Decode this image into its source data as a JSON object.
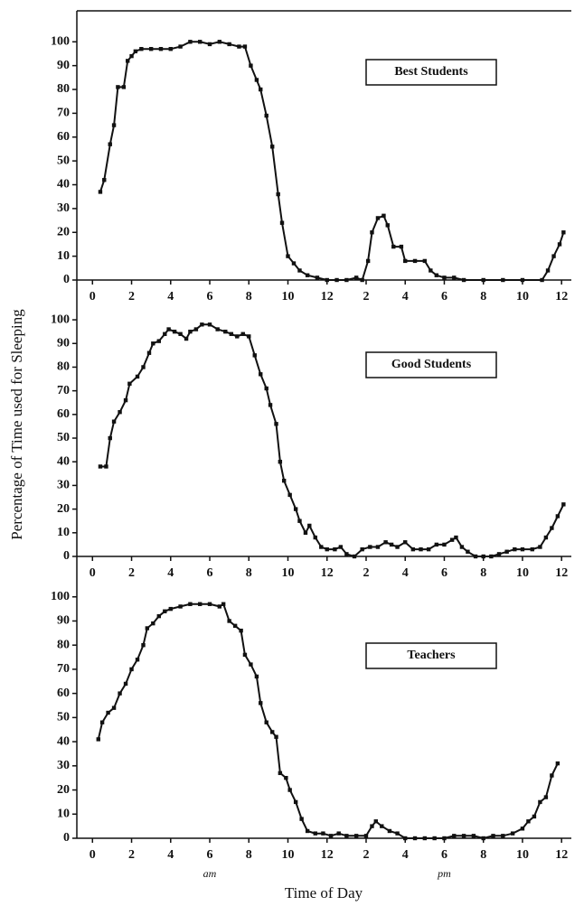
{
  "chart_data": [
    {
      "type": "line",
      "x": [
        0.4,
        0.6,
        0.9,
        1.1,
        1.3,
        1.6,
        1.8,
        2.0,
        2.2,
        2.5,
        3,
        3.5,
        4,
        4.5,
        5,
        5.5,
        6,
        6.5,
        7,
        7.5,
        7.8,
        8.1,
        8.4,
        8.6,
        8.9,
        9.2,
        9.5,
        9.7,
        10,
        10.3,
        10.6,
        11,
        11.5,
        12,
        12.5,
        13,
        13.5,
        13.8,
        14.1,
        14.3,
        14.6,
        14.9,
        15.1,
        15.4,
        15.8,
        16,
        16.5,
        17,
        17.3,
        17.6,
        18,
        18.5,
        19,
        20,
        21,
        22,
        23,
        23.3,
        23.6,
        23.9,
        24.1
      ],
      "series": [
        {
          "name": "Best Students",
          "color": "#111111",
          "values": [
            37,
            42,
            57,
            65,
            81,
            81,
            92,
            94,
            96,
            97,
            97,
            97,
            97,
            98,
            100,
            100,
            99,
            100,
            99,
            98,
            98,
            90,
            84,
            80,
            69,
            56,
            36,
            24,
            10,
            7,
            4,
            2,
            1,
            0,
            0,
            0,
            1,
            0,
            8,
            20,
            26,
            27,
            23,
            14,
            14,
            8,
            8,
            8,
            4,
            2,
            1,
            1,
            0,
            0,
            0,
            0,
            0,
            4,
            10,
            15,
            20
          ]
        }
      ],
      "xlim": [
        -0.8,
        24.5
      ],
      "ylim": [
        0,
        113
      ],
      "xticks": [
        0,
        2,
        4,
        6,
        8,
        10,
        12,
        {
          "value": 14,
          "label": "2"
        },
        {
          "value": 16,
          "label": "4"
        },
        {
          "value": 18,
          "label": "6"
        },
        {
          "value": 20,
          "label": "8"
        },
        {
          "value": 22,
          "label": "10"
        },
        {
          "value": 24,
          "label": "12"
        }
      ],
      "yticks": [
        0,
        10,
        20,
        30,
        40,
        50,
        60,
        70,
        80,
        90,
        100
      ],
      "legend": "upper right"
    },
    {
      "type": "line",
      "ylabel": "Percentage of Time used for Sleeping",
      "x": [
        0.4,
        0.7,
        0.9,
        1.1,
        1.4,
        1.7,
        1.9,
        2.3,
        2.6,
        2.9,
        3.1,
        3.4,
        3.7,
        3.9,
        4.2,
        4.5,
        4.8,
        5.0,
        5.3,
        5.6,
        6,
        6.4,
        6.8,
        7.1,
        7.4,
        7.7,
        8,
        8.3,
        8.6,
        8.9,
        9.1,
        9.4,
        9.6,
        9.8,
        10.1,
        10.4,
        10.6,
        10.9,
        11.1,
        11.4,
        11.7,
        12,
        12.4,
        12.7,
        13,
        13.4,
        13.8,
        14.2,
        14.6,
        15,
        15.3,
        15.6,
        16,
        16.4,
        16.8,
        17.2,
        17.6,
        18,
        18.4,
        18.6,
        18.9,
        19.2,
        19.6,
        20,
        20.4,
        20.8,
        21.2,
        21.6,
        22,
        22.5,
        22.9,
        23.2,
        23.5,
        23.8,
        24.1
      ],
      "series": [
        {
          "name": "Good Students",
          "color": "#111111",
          "values": [
            38,
            38,
            50,
            57,
            61,
            66,
            73,
            76,
            80,
            86,
            90,
            91,
            94,
            96,
            95,
            94,
            92,
            95,
            96,
            98,
            98,
            96,
            95,
            94,
            93,
            94,
            93,
            85,
            77,
            71,
            64,
            56,
            40,
            32,
            26,
            20,
            15,
            10,
            13,
            8,
            4,
            3,
            3,
            4,
            1,
            0,
            3,
            4,
            4,
            6,
            5,
            4,
            6,
            3,
            3,
            3,
            5,
            5,
            7,
            8,
            4,
            2,
            0,
            0,
            0,
            1,
            2,
            3,
            3,
            3,
            4,
            8,
            12,
            17,
            22
          ]
        }
      ],
      "xlim": [
        -0.8,
        24.5
      ],
      "ylim": [
        0,
        113
      ],
      "xticks": [
        0,
        2,
        4,
        6,
        8,
        10,
        12,
        {
          "value": 14,
          "label": "2"
        },
        {
          "value": 16,
          "label": "4"
        },
        {
          "value": 18,
          "label": "6"
        },
        {
          "value": 20,
          "label": "8"
        },
        {
          "value": 22,
          "label": "10"
        },
        {
          "value": 24,
          "label": "12"
        }
      ],
      "yticks": [
        0,
        10,
        20,
        30,
        40,
        50,
        60,
        70,
        80,
        90,
        100
      ],
      "legend": "upper right"
    },
    {
      "type": "line",
      "xlabel": "Time of Day",
      "annotations": [
        {
          "text": "am",
          "x": 6
        },
        {
          "text": "pm",
          "x": 18
        }
      ],
      "x": [
        0.3,
        0.5,
        0.8,
        1.1,
        1.4,
        1.7,
        2,
        2.3,
        2.6,
        2.8,
        3.1,
        3.4,
        3.7,
        4,
        4.5,
        5,
        5.5,
        6,
        6.5,
        6.7,
        7,
        7.3,
        7.6,
        7.8,
        8.1,
        8.4,
        8.6,
        8.9,
        9.2,
        9.4,
        9.6,
        9.9,
        10.1,
        10.4,
        10.7,
        11,
        11.4,
        11.8,
        12.2,
        12.6,
        13,
        13.5,
        14,
        14.3,
        14.5,
        14.8,
        15.2,
        15.6,
        16,
        16.5,
        17,
        17.5,
        18,
        18.5,
        19,
        19.5,
        20,
        20.5,
        21,
        21.5,
        22,
        22.3,
        22.6,
        22.9,
        23.2,
        23.5,
        23.8
      ],
      "series": [
        {
          "name": "Teachers",
          "color": "#111111",
          "values": [
            41,
            48,
            52,
            54,
            60,
            64,
            70,
            74,
            80,
            87,
            89,
            92,
            94,
            95,
            96,
            97,
            97,
            97,
            96,
            97,
            90,
            88,
            86,
            76,
            72,
            67,
            56,
            48,
            44,
            42,
            27,
            25,
            20,
            15,
            8,
            3,
            2,
            2,
            1,
            2,
            1,
            1,
            1,
            5,
            7,
            5,
            3,
            2,
            0,
            0,
            0,
            0,
            0,
            1,
            1,
            1,
            0,
            1,
            1,
            2,
            4,
            7,
            9,
            15,
            17,
            26,
            31
          ]
        }
      ],
      "xlim": [
        -0.8,
        24.5
      ],
      "ylim": [
        0,
        113
      ],
      "xticks": [
        0,
        2,
        4,
        6,
        8,
        10,
        12,
        {
          "value": 14,
          "label": "2"
        },
        {
          "value": 16,
          "label": "4"
        },
        {
          "value": 18,
          "label": "6"
        },
        {
          "value": 20,
          "label": "8"
        },
        {
          "value": 22,
          "label": "10"
        },
        {
          "value": 24,
          "label": "12"
        }
      ],
      "yticks": [
        0,
        10,
        20,
        30,
        40,
        50,
        60,
        70,
        80,
        90,
        100
      ],
      "legend": "upper right"
    }
  ]
}
